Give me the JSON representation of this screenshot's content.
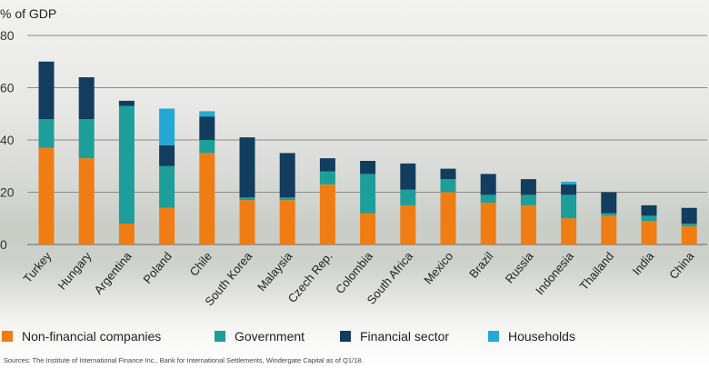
{
  "chart_data": {
    "type": "bar",
    "stacked": true,
    "ylabel": "% of GDP",
    "ylim": [
      0,
      80
    ],
    "yticks": [
      0,
      20,
      40,
      60,
      80
    ],
    "grid": true,
    "legend_position": "bottom",
    "categories": [
      "Turkey",
      "Hungary",
      "Argentina",
      "Poland",
      "Chile",
      "South Korea",
      "Malaysia",
      "Czech Rep.",
      "Colombia",
      "South Africa",
      "Mexico",
      "Brazil",
      "Russia",
      "Indonesia",
      "Thailand",
      "India",
      "China"
    ],
    "series": [
      {
        "name": "Non-financial companies",
        "color": "#f07d14",
        "values": [
          37,
          33,
          8,
          14,
          35,
          17,
          17,
          23,
          12,
          15,
          20,
          16,
          15,
          10,
          11,
          9,
          7
        ]
      },
      {
        "name": "Government",
        "color": "#1d9e9a",
        "values": [
          11,
          15,
          45,
          16,
          5,
          1,
          1,
          5,
          15,
          6,
          5,
          3,
          4,
          9,
          1,
          2,
          1
        ]
      },
      {
        "name": "Financial sector",
        "color": "#123d5e",
        "values": [
          22,
          16,
          2,
          8,
          9,
          23,
          17,
          5,
          5,
          10,
          4,
          8,
          6,
          4,
          8,
          4,
          6
        ]
      },
      {
        "name": "Households",
        "color": "#24a9d4",
        "values": [
          0,
          0,
          0,
          14,
          2,
          0,
          0,
          0,
          0,
          0,
          0,
          0,
          0,
          1,
          0,
          0,
          0
        ]
      }
    ]
  },
  "source_note": "Sources: The Institute of International Finance Inc., Bank for International Settlements, Windergate Capital as of Q1/18."
}
